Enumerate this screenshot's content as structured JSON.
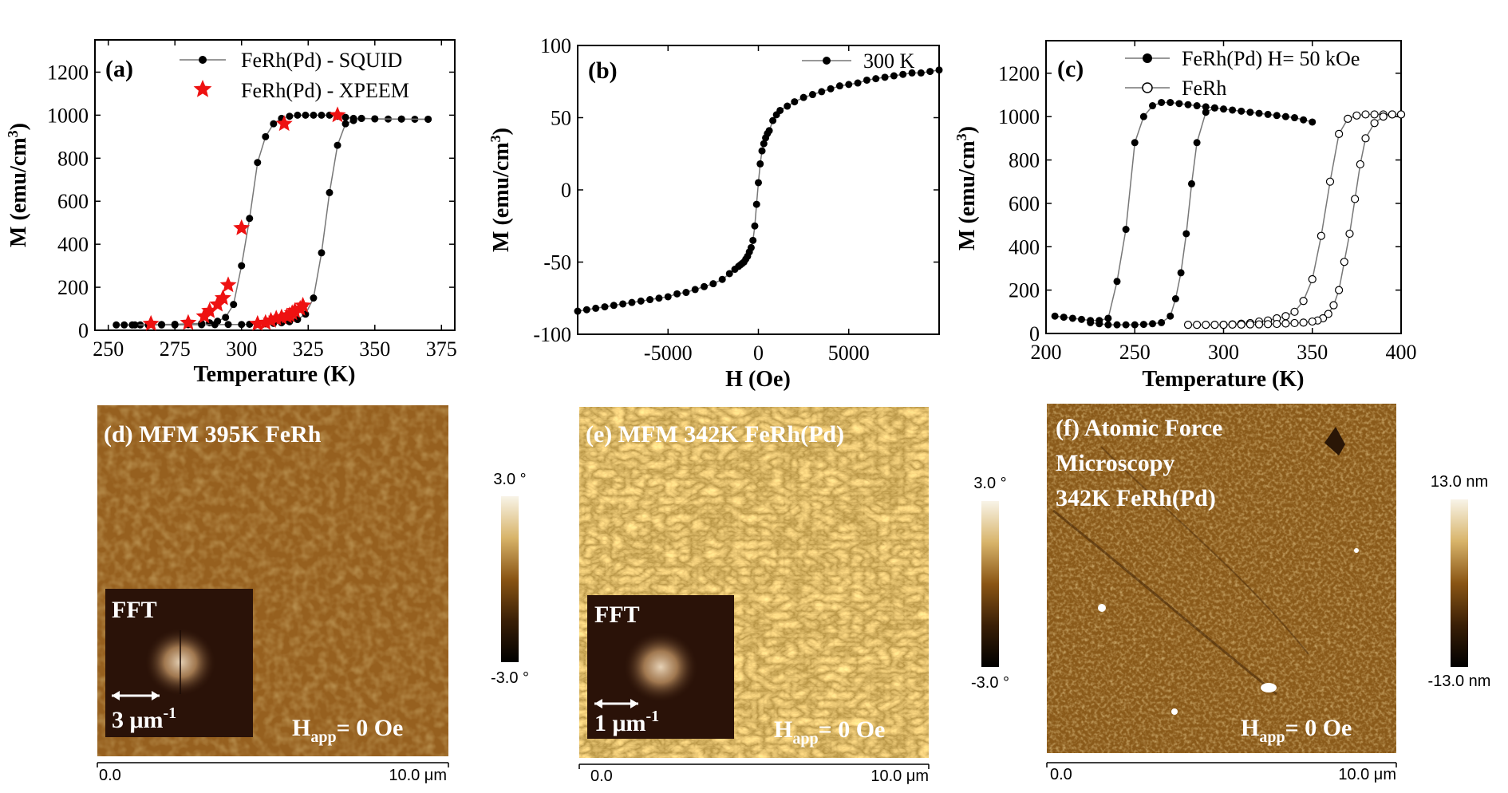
{
  "chart_data": [
    {
      "id": "a",
      "type": "scatter",
      "tag": "(a)",
      "xlabel": "Temperature (K)",
      "ylabel": "M (emu/cm³)",
      "ylabel_base": "M (emu/cm",
      "ylabel_sup": "3",
      "ylabel_end": ")",
      "xlim": [
        245,
        380
      ],
      "ylim": [
        0,
        1350
      ],
      "xticks": [
        250,
        275,
        300,
        325,
        350,
        375
      ],
      "yticks": [
        0,
        200,
        400,
        600,
        800,
        1000,
        1200
      ],
      "legend": [
        "FeRh(Pd) - SQUID",
        "FeRh(Pd) - XPEEM"
      ],
      "series": [
        {
          "name": "FeRh(Pd) - SQUID heating",
          "marker": "circle",
          "color": "#000000",
          "x": [
            253,
            256,
            259,
            262,
            265,
            270,
            275,
            280,
            285,
            288,
            291,
            294,
            297,
            300,
            303,
            306,
            309,
            312,
            315,
            318,
            321,
            324,
            327,
            330,
            333,
            336,
            339,
            342,
            345,
            350,
            355,
            360,
            365,
            370
          ],
          "y": [
            25,
            25,
            25,
            25,
            25,
            27,
            28,
            30,
            32,
            35,
            42,
            60,
            120,
            300,
            520,
            780,
            900,
            960,
            985,
            995,
            1000,
            1000,
            1000,
            1000,
            1000,
            995,
            990,
            985,
            985,
            983,
            982,
            982,
            981,
            981
          ]
        },
        {
          "name": "FeRh(Pd) - SQUID cooling",
          "marker": "circle",
          "color": "#000000",
          "x": [
            370,
            360,
            350,
            345,
            342,
            339,
            336,
            333,
            330,
            327,
            324,
            321,
            318,
            315,
            312,
            309,
            306,
            303,
            300,
            295,
            290,
            285,
            280,
            275,
            270,
            265,
            260
          ],
          "y": [
            981,
            982,
            983,
            985,
            975,
            960,
            860,
            640,
            360,
            150,
            75,
            50,
            40,
            35,
            32,
            30,
            29,
            28,
            27,
            27,
            26,
            26,
            26,
            25,
            25,
            25,
            25
          ]
        },
        {
          "name": "FeRh(Pd) - XPEEM",
          "marker": "star",
          "color": "#ee1111",
          "x": [
            266,
            280,
            286,
            288,
            291,
            293,
            295,
            306,
            309,
            311,
            313,
            315,
            317,
            318,
            319,
            320,
            322,
            323,
            300,
            316,
            336
          ],
          "y": [
            30,
            35,
            65,
            90,
            120,
            150,
            210,
            30,
            35,
            45,
            55,
            60,
            65,
            70,
            80,
            90,
            100,
            115,
            475,
            960,
            1000
          ]
        }
      ]
    },
    {
      "id": "b",
      "type": "line",
      "tag": "(b)",
      "xlabel": "H (Oe)",
      "ylabel": "M (emu/cm³)",
      "ylabel_base": "M (emu/cm",
      "ylabel_sup": "3",
      "ylabel_end": ")",
      "xlim": [
        -10000,
        10000
      ],
      "ylim": [
        -100,
        100
      ],
      "xticks": [
        -5000,
        0,
        5000
      ],
      "yticks": [
        -100,
        -50,
        0,
        50,
        100
      ],
      "legend": [
        "300 K"
      ],
      "series": [
        {
          "name": "300 K",
          "marker": "circle",
          "color": "#000000",
          "x": [
            -10000,
            -9500,
            -9000,
            -8500,
            -8000,
            -7500,
            -7000,
            -6500,
            -6000,
            -5500,
            -5000,
            -4500,
            -4000,
            -3500,
            -3000,
            -2500,
            -2000,
            -1600,
            -1300,
            -1100,
            -1000,
            -900,
            -800,
            -700,
            -600,
            -500,
            -400,
            -300,
            -200,
            -100,
            0,
            100,
            200,
            300,
            400,
            500,
            600,
            800,
            1000,
            1200,
            1600,
            2000,
            2500,
            3000,
            3500,
            4000,
            4500,
            5000,
            5500,
            6000,
            6500,
            7000,
            7500,
            8000,
            8500,
            9000,
            9500,
            10000
          ],
          "y": [
            -84,
            -83,
            -82,
            -81,
            -80,
            -79,
            -78,
            -77,
            -76,
            -75,
            -74,
            -72,
            -71,
            -69,
            -67,
            -65,
            -62,
            -58,
            -55,
            -53,
            -52,
            -51,
            -50,
            -48,
            -46,
            -43,
            -40,
            -35,
            -25,
            -10,
            5,
            18,
            27,
            32,
            36,
            39,
            41,
            48,
            52,
            55,
            58,
            61,
            64,
            66,
            68,
            70,
            72,
            73,
            74,
            76,
            77,
            78,
            79,
            80,
            81,
            81,
            82,
            83
          ]
        }
      ]
    },
    {
      "id": "c",
      "type": "scatter",
      "tag": "(c)",
      "xlabel": "Temperature (K)",
      "ylabel": "M (emu/cm³)",
      "ylabel_base": "M (emu/cm",
      "ylabel_sup": "3",
      "ylabel_end": ")",
      "xlim": [
        200,
        400
      ],
      "ylim": [
        0,
        1350
      ],
      "xticks": [
        200,
        250,
        300,
        350,
        400
      ],
      "yticks": [
        0,
        200,
        400,
        600,
        800,
        1000,
        1200
      ],
      "legend": [
        "FeRh(Pd) H= 50 kOe",
        "FeRh"
      ],
      "series": [
        {
          "name": "FeRh(Pd) H= 50 kOe heating",
          "marker": "circle",
          "color": "#000000",
          "x": [
            205,
            210,
            215,
            220,
            225,
            230,
            235,
            240,
            245,
            250,
            255,
            260,
            265,
            270,
            275,
            280,
            285,
            290,
            295,
            300,
            305,
            310,
            315,
            320,
            325,
            330,
            335,
            340,
            345,
            350
          ],
          "y": [
            80,
            75,
            70,
            65,
            60,
            60,
            70,
            240,
            480,
            880,
            1000,
            1050,
            1065,
            1065,
            1060,
            1055,
            1050,
            1045,
            1040,
            1035,
            1030,
            1025,
            1020,
            1015,
            1010,
            1005,
            1000,
            995,
            985,
            975
          ]
        },
        {
          "name": "FeRh(Pd) H= 50 kOe cooling",
          "marker": "circle",
          "color": "#000000",
          "x": [
            295,
            290,
            285,
            282,
            279,
            276,
            273,
            270,
            265,
            260,
            255,
            250,
            245,
            240,
            235,
            230,
            225
          ],
          "y": [
            1040,
            1020,
            880,
            690,
            460,
            280,
            160,
            80,
            50,
            45,
            42,
            40,
            40,
            40,
            40,
            45,
            50
          ]
        },
        {
          "name": "FeRh heating",
          "marker": "open-circle",
          "color": "#000000",
          "x": [
            300,
            305,
            310,
            315,
            320,
            325,
            330,
            335,
            340,
            345,
            350,
            355,
            360,
            365,
            370,
            375,
            380,
            385,
            390,
            395,
            400
          ],
          "y": [
            40,
            42,
            45,
            48,
            55,
            60,
            70,
            80,
            100,
            150,
            250,
            450,
            700,
            920,
            990,
            1005,
            1010,
            1010,
            1010,
            1010,
            1010
          ]
        },
        {
          "name": "FeRh cooling",
          "marker": "open-circle",
          "color": "#000000",
          "x": [
            400,
            395,
            390,
            385,
            380,
            377,
            374,
            371,
            368,
            365,
            362,
            359,
            356,
            353,
            350,
            345,
            340,
            335,
            330,
            325,
            320,
            315,
            310,
            305,
            300,
            295,
            290,
            285,
            280
          ],
          "y": [
            1010,
            1010,
            1000,
            970,
            900,
            780,
            620,
            460,
            330,
            200,
            130,
            90,
            70,
            60,
            55,
            50,
            48,
            46,
            44,
            43,
            42,
            42,
            41,
            41,
            40,
            40,
            40,
            40,
            40
          ]
        }
      ]
    }
  ],
  "images": [
    {
      "label": "(d) MFM 395K FeRh",
      "fft": {
        "title": "FFT",
        "scale": "3 μm",
        "scale_sup": "-1"
      },
      "happ_base": "H",
      "happ_sub": "app",
      "happ_rest": "= 0 Oe",
      "scale_start": "0.0",
      "scale_end": "10.0 μm",
      "colorbar": {
        "max": "3.0 °",
        "min": "-3.0 °"
      }
    },
    {
      "label": "(e) MFM 342K FeRh(Pd)",
      "fft": {
        "title": "FFT",
        "scale": "1 μm",
        "scale_sup": "-1"
      },
      "happ_base": "H",
      "happ_sub": "app",
      "happ_rest": "= 0 Oe",
      "scale_start": "0.0",
      "scale_end": "10.0 μm",
      "colorbar": {
        "max": "3.0 °",
        "min": "-3.0 °"
      }
    },
    {
      "label_lines": [
        "(f) Atomic Force",
        "Microscopy",
        "342K FeRh(Pd)"
      ],
      "happ_base": "H",
      "happ_sub": "app",
      "happ_rest": "= 0 Oe",
      "scale_start": "0.0",
      "scale_end": "10.0 μm",
      "colorbar": {
        "max": "13.0 nm",
        "min": "-13.0 nm"
      }
    }
  ],
  "colors": {
    "squid": "#000000",
    "xpeem": "#ee1111",
    "afm_base": "#8a5a1a",
    "mfm_base": "#8b5a1e"
  }
}
